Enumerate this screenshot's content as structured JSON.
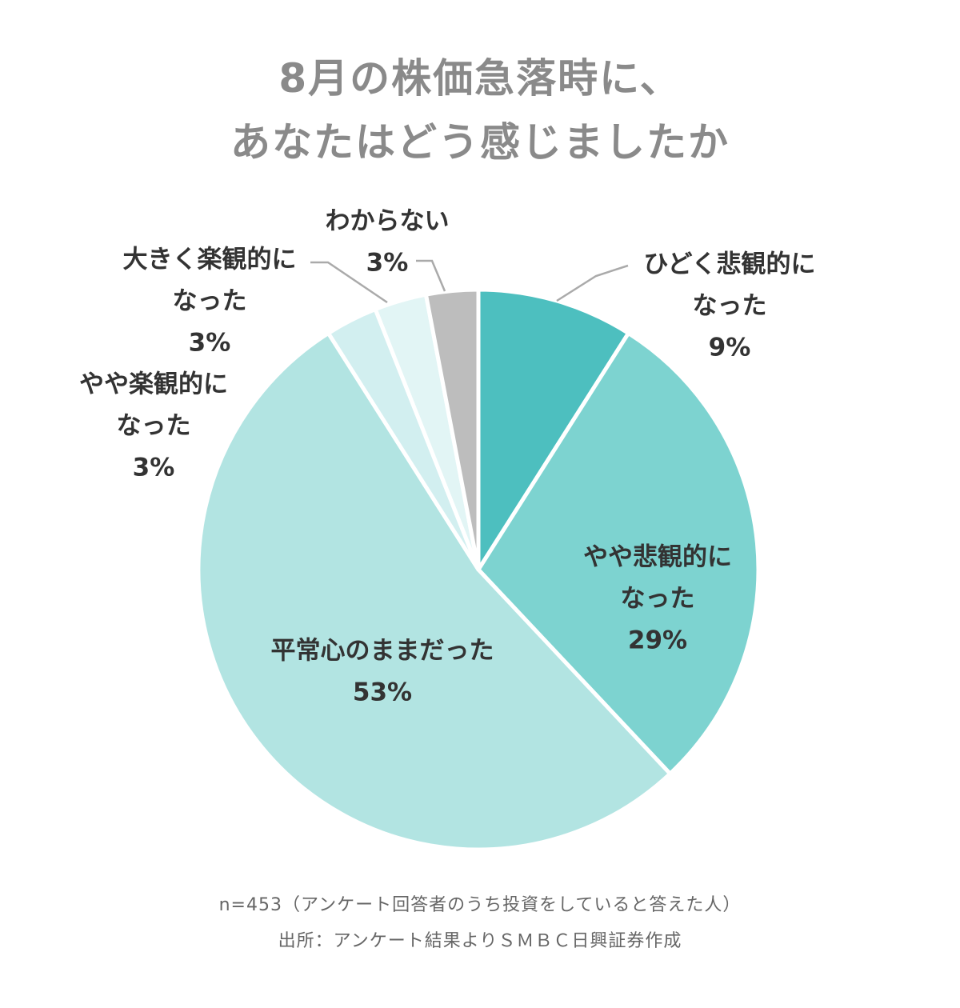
{
  "title": {
    "line1": "8月の株価急落時に、",
    "line2": "あなたはどう感じましたか"
  },
  "chart_data": {
    "type": "pie",
    "start_angle_deg": 0,
    "direction": "clockwise",
    "slices": [
      {
        "label_lines": [
          "ひどく悲観的に",
          "なった"
        ],
        "value": 9,
        "value_label": "9%",
        "color": "#4dbfbf"
      },
      {
        "label_lines": [
          "やや悲観的に",
          "なった"
        ],
        "value": 29,
        "value_label": "29%",
        "color": "#7dd3d0"
      },
      {
        "label_lines": [
          "平常心のままだった"
        ],
        "value": 53,
        "value_label": "53%",
        "color": "#b2e4e2"
      },
      {
        "label_lines": [
          "やや楽観的に",
          "なった"
        ],
        "value": 3,
        "value_label": "3%",
        "color": "#d2eff0"
      },
      {
        "label_lines": [
          "大きく楽観的に",
          "なった"
        ],
        "value": 3,
        "value_label": "3%",
        "color": "#e2f5f5"
      },
      {
        "label_lines": [
          "わからない"
        ],
        "value": 3,
        "value_label": "3%",
        "color": "#bdbdbd"
      }
    ],
    "label_color": "#333333",
    "leader_color": "#aaaaaa"
  },
  "footnotes": {
    "line1": "n=453（アンケート回答者のうち投資をしていると答えた人）",
    "line2": "出所：アンケート結果よりＳＭＢＣ日興証券作成"
  }
}
